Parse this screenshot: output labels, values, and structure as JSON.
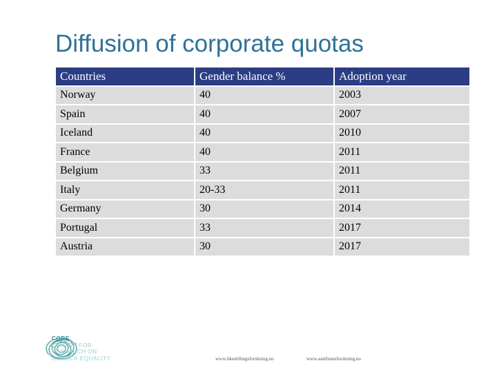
{
  "title": "Diffusion of corporate quotas",
  "table": {
    "headers": [
      "Countries",
      "Gender balance %",
      "Adoption year"
    ],
    "rows": [
      [
        "Norway",
        "40",
        "2003"
      ],
      [
        "Spain",
        "40",
        "2007"
      ],
      [
        "Iceland",
        "40",
        "2010"
      ],
      [
        "France",
        "40",
        "2011"
      ],
      [
        "Belgium",
        "33",
        "2011"
      ],
      [
        "Italy",
        "20-33",
        "2011"
      ],
      [
        "Germany",
        "30",
        "2014"
      ],
      [
        "Portugal",
        "33",
        "2017"
      ],
      [
        "Austria",
        "30",
        "2017"
      ]
    ]
  },
  "logo": {
    "lines": [
      "CORE",
      "CENTRE FOR",
      "RESEARCH ON",
      "GENDER EQUALITY"
    ]
  },
  "footer": {
    "url_left": "www.likestillingsforskning.no",
    "url_right": "www.samfunnsforskning.no"
  },
  "colors": {
    "title": "#2e7197",
    "header_bg": "#2b3d85",
    "cell_bg": "#dcdcdc",
    "logo": "#2b8a8e"
  }
}
